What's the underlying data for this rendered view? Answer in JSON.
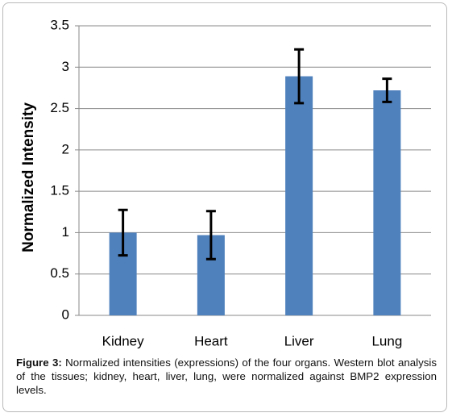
{
  "chart_data": {
    "type": "bar",
    "y_label": "Normalized Intensity",
    "categories": [
      "Kidney",
      "Heart",
      "Liver",
      "Lung"
    ],
    "values": [
      1.0,
      0.97,
      2.89,
      2.72
    ],
    "errors": [
      0.275,
      0.29,
      0.325,
      0.14
    ],
    "color": "#4f81bd",
    "ylim": [
      0,
      3.5
    ],
    "yticks": [
      0,
      0.5,
      1,
      1.5,
      2,
      2.5,
      3,
      3.5
    ],
    "grid": true,
    "caption_label": "Figure 3:",
    "caption_text": "Normalized intensities (expressions) of the four organs. Western blot analysis of the tissues; kidney, heart, liver, lung, were normalized against BMP2 expression levels."
  }
}
